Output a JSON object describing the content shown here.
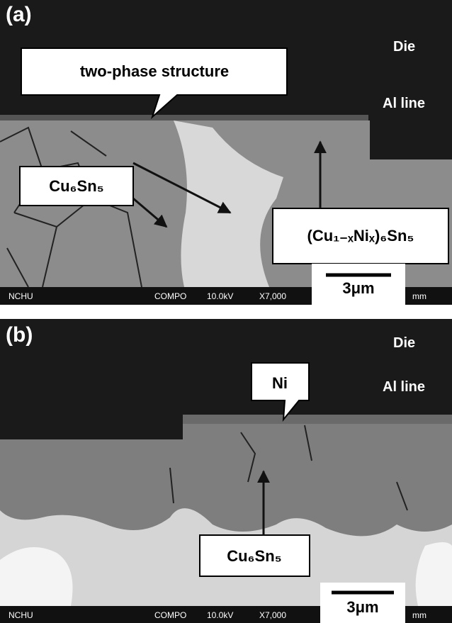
{
  "panels": [
    {
      "label": "(a)",
      "layers": {
        "die": "Die",
        "al_line": "Al line"
      },
      "callouts": [
        "two-phase structure",
        "Cu₆Sn₅",
        "(Cu₁₋ₓNiₓ)₆Sn₅"
      ],
      "scale_bar": "3μm",
      "info_bar": [
        "NCHU",
        "COMPO",
        "10.0kV",
        "X7,000",
        "mm"
      ]
    },
    {
      "label": "(b)",
      "layers": {
        "die": "Die",
        "al_line": "Al line"
      },
      "callouts": [
        "Ni",
        "Cu₆Sn₅"
      ],
      "scale_bar": "3μm",
      "info_bar": [
        "NCHU",
        "COMPO",
        "10.0kV",
        "X7,000",
        "mm"
      ]
    }
  ]
}
